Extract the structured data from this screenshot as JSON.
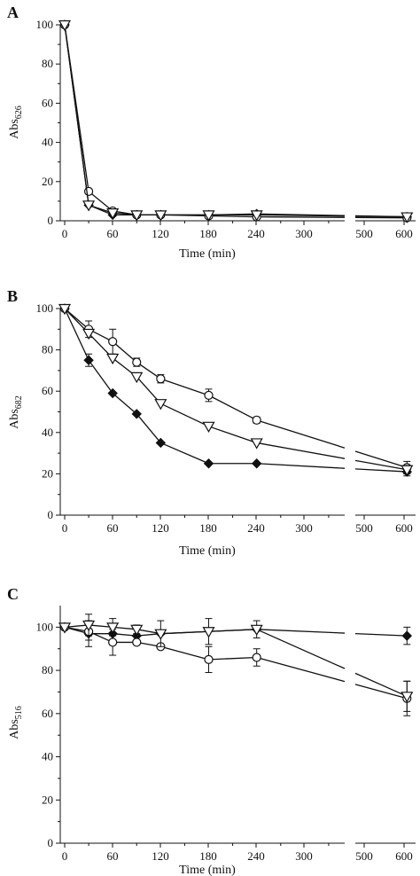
{
  "chart_data": [
    {
      "type": "line",
      "panel": "A",
      "ylabel": "Abs",
      "ylabel_sub": "626",
      "xlabel": "Time (min)",
      "x_ticks": [
        "0",
        "60",
        "120",
        "180",
        "240",
        "300",
        "500",
        "600"
      ],
      "y_ticks": [
        "0",
        "20",
        "40",
        "60",
        "80",
        "100"
      ],
      "ylim": [
        0,
        100
      ],
      "x_segments": [
        [
          0,
          350
        ],
        [
          480,
          620
        ]
      ],
      "axis_break": "between 350 and 480 min",
      "series": [
        {
          "marker": "diamond-filled",
          "x": [
            0,
            30,
            60,
            90,
            120,
            180,
            240,
            600
          ],
          "y": [
            100,
            8,
            3,
            3,
            3,
            3,
            3.5,
            2
          ],
          "err": [
            0,
            0,
            0,
            0,
            0,
            0,
            0,
            0
          ]
        },
        {
          "marker": "circle-open",
          "x": [
            0,
            30,
            60,
            90,
            120,
            180,
            240,
            600
          ],
          "y": [
            100,
            15,
            5,
            3,
            3,
            2.5,
            2,
            1.5
          ],
          "err": [
            0,
            0,
            0,
            0,
            0,
            0,
            0,
            0
          ]
        },
        {
          "marker": "triangle-down-open",
          "x": [
            0,
            30,
            60,
            90,
            120,
            180,
            240,
            600
          ],
          "y": [
            100,
            8,
            4,
            3,
            3,
            3,
            3,
            2
          ],
          "err": [
            0,
            0,
            0,
            0,
            0,
            0,
            0,
            0
          ]
        }
      ]
    },
    {
      "type": "line",
      "panel": "B",
      "ylabel": "Abs",
      "ylabel_sub": "682",
      "xlabel": "Time (min)",
      "x_ticks": [
        "0",
        "60",
        "120",
        "180",
        "240",
        "300",
        "500",
        "600"
      ],
      "y_ticks": [
        "0",
        "20",
        "40",
        "60",
        "80",
        "100"
      ],
      "ylim": [
        0,
        100
      ],
      "x_segments": [
        [
          0,
          350
        ],
        [
          480,
          620
        ]
      ],
      "axis_break": "between 350 and 480 min",
      "series": [
        {
          "marker": "diamond-filled",
          "x": [
            0,
            30,
            60,
            90,
            120,
            180,
            240,
            600
          ],
          "y": [
            100,
            75,
            59,
            49,
            35,
            25,
            25,
            21
          ],
          "err": [
            0,
            3,
            0,
            0,
            0,
            0,
            0,
            2
          ]
        },
        {
          "marker": "circle-open",
          "x": [
            0,
            30,
            60,
            90,
            120,
            180,
            240,
            600
          ],
          "y": [
            100,
            90,
            84,
            74,
            66,
            58,
            46,
            23
          ],
          "err": [
            0,
            4,
            6,
            2,
            2,
            3,
            1.5,
            3
          ]
        },
        {
          "marker": "triangle-down-open",
          "x": [
            0,
            30,
            60,
            90,
            120,
            180,
            240,
            600
          ],
          "y": [
            100,
            88,
            76,
            67,
            54,
            43,
            35,
            22
          ],
          "err": [
            0,
            0,
            0,
            0,
            0,
            0,
            0,
            2
          ]
        }
      ]
    },
    {
      "type": "line",
      "panel": "C",
      "ylabel": "Abs",
      "ylabel_sub": "516",
      "xlabel": "Time (min)",
      "x_ticks": [
        "0",
        "60",
        "120",
        "180",
        "240",
        "300",
        "500",
        "600"
      ],
      "y_ticks": [
        "0",
        "20",
        "40",
        "60",
        "80",
        "100"
      ],
      "ylim": [
        0,
        110
      ],
      "x_segments": [
        [
          0,
          350
        ],
        [
          480,
          620
        ]
      ],
      "axis_break": "between 350 and 480 min",
      "series": [
        {
          "marker": "diamond-filled",
          "x": [
            0,
            30,
            60,
            90,
            120,
            240,
            600
          ],
          "y": [
            100,
            97,
            97,
            96,
            97,
            99,
            96
          ],
          "err": [
            0,
            6,
            0,
            0,
            0,
            0,
            4
          ]
        },
        {
          "marker": "circle-open",
          "x": [
            0,
            30,
            60,
            90,
            120,
            180,
            240,
            600
          ],
          "y": [
            100,
            98,
            93,
            93,
            91,
            85,
            86,
            67
          ],
          "err": [
            0,
            4,
            6,
            0,
            0,
            6,
            4,
            8
          ]
        },
        {
          "marker": "triangle-down-open",
          "x": [
            0,
            30,
            60,
            90,
            120,
            180,
            240,
            600
          ],
          "y": [
            100,
            101,
            100,
            99,
            97,
            98,
            99,
            68
          ],
          "err": [
            0,
            5,
            4,
            2,
            6,
            6,
            4,
            7
          ]
        }
      ]
    }
  ]
}
